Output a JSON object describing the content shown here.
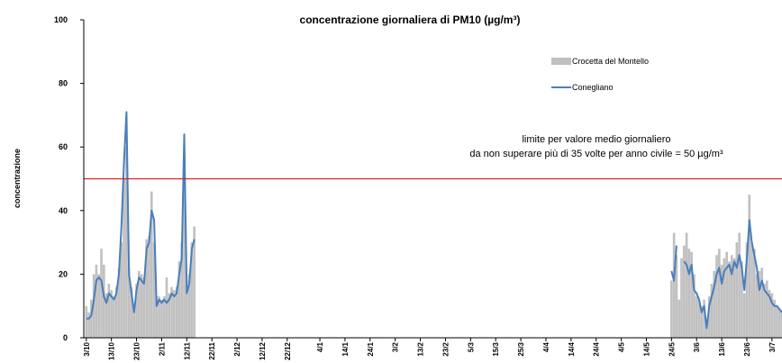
{
  "chart_data": {
    "type": "bar_line",
    "title": "concentrazione giornaliera di PM10 (µg/m³)",
    "y_label": "concentrazione",
    "ylim": [
      0,
      100
    ],
    "yticks": [
      0,
      20,
      40,
      60,
      80,
      100
    ],
    "xlim": [
      -1,
      277
    ],
    "xticks": [
      {
        "value": 0,
        "label": "3/10"
      },
      {
        "value": 10,
        "label": "13/10"
      },
      {
        "value": 20,
        "label": "23/10"
      },
      {
        "value": 30,
        "label": "2/11"
      },
      {
        "value": 40,
        "label": "12/11"
      },
      {
        "value": 50,
        "label": "22/11"
      },
      {
        "value": 60,
        "label": "2/12"
      },
      {
        "value": 70,
        "label": "12/12"
      },
      {
        "value": 80,
        "label": "22/12"
      },
      {
        "value": 93,
        "label": "4/1"
      },
      {
        "value": 103,
        "label": "14/1"
      },
      {
        "value": 113,
        "label": "24/1"
      },
      {
        "value": 123,
        "label": "3/2"
      },
      {
        "value": 133,
        "label": "13/2"
      },
      {
        "value": 143,
        "label": "23/2"
      },
      {
        "value": 153,
        "label": "5/3"
      },
      {
        "value": 163,
        "label": "15/3"
      },
      {
        "value": 173,
        "label": "25/3"
      },
      {
        "value": 183,
        "label": "4/4"
      },
      {
        "value": 193,
        "label": "14/4"
      },
      {
        "value": 203,
        "label": "24/4"
      },
      {
        "value": 213,
        "label": "4/5"
      },
      {
        "value": 223,
        "label": "14/5"
      },
      {
        "value": 233,
        "label": "24/5"
      },
      {
        "value": 243,
        "label": "3/6"
      },
      {
        "value": 253,
        "label": "13/6"
      },
      {
        "value": 263,
        "label": "23/6"
      },
      {
        "value": 273,
        "label": "3/7"
      }
    ],
    "x": [
      0,
      1,
      2,
      3,
      4,
      5,
      6,
      7,
      8,
      9,
      10,
      11,
      12,
      13,
      14,
      15,
      16,
      17,
      18,
      19,
      20,
      21,
      22,
      23,
      24,
      25,
      26,
      27,
      28,
      29,
      30,
      31,
      32,
      33,
      34,
      35,
      36,
      37,
      38,
      39,
      40,
      41,
      42,
      43,
      233,
      234,
      235,
      236,
      237,
      238,
      239,
      240,
      241,
      242,
      243,
      244,
      245,
      246,
      247,
      248,
      249,
      250,
      251,
      252,
      253,
      254,
      255,
      256,
      257,
      258,
      259,
      260,
      261,
      262,
      263,
      264,
      265,
      266,
      267,
      268,
      269,
      270,
      271,
      272,
      273,
      274,
      275,
      276,
      277
    ],
    "series": [
      {
        "name": "Crocetta del Montello",
        "kind": "bar",
        "color": "#c0c0c0",
        "values": [
          10,
          8,
          12,
          20,
          23,
          20,
          28,
          23,
          14,
          17,
          15,
          13,
          16,
          22,
          30,
          50,
          60,
          22,
          16,
          10,
          17,
          21,
          20,
          19,
          31,
          32,
          46,
          30,
          13,
          13,
          12,
          13,
          19,
          14,
          16,
          15,
          16,
          24,
          30,
          55,
          18,
          20,
          30,
          35,
          18,
          33,
          26,
          12,
          25,
          29,
          33,
          28,
          27,
          20,
          13,
          12,
          10,
          12,
          5,
          13,
          17,
          21,
          26,
          28,
          23,
          25,
          27,
          24,
          26,
          25,
          30,
          33,
          24,
          14,
          30,
          45,
          30,
          28,
          20,
          21,
          22,
          17,
          18,
          15,
          14,
          12,
          10,
          9,
          8
        ]
      },
      {
        "name": "Conegliano",
        "kind": "line",
        "color": "#4a7ebb",
        "values": [
          6,
          6,
          7,
          12,
          18,
          19,
          18,
          13,
          11,
          14,
          13,
          12,
          14,
          20,
          35,
          55,
          71,
          20,
          14,
          8,
          15,
          19,
          18,
          17,
          28,
          30,
          40,
          37,
          10,
          12,
          11,
          12,
          11,
          12,
          14,
          13,
          14,
          20,
          25,
          64,
          14,
          17,
          28,
          31,
          21,
          18,
          29,
          null,
          null,
          24,
          23,
          20,
          23,
          15,
          14,
          12,
          8,
          10,
          3,
          10,
          13,
          16,
          20,
          22,
          17,
          21,
          22,
          23,
          20,
          24,
          22,
          26,
          22,
          15,
          25,
          37,
          30,
          26,
          22,
          15,
          18,
          15,
          14,
          13,
          11,
          10,
          10,
          9,
          8
        ]
      }
    ],
    "reference_line": {
      "value": 50,
      "color": "#e02020"
    },
    "annotation": [
      "limite per valore medio giornaliero",
      "da non superare più di 35 volte per anno civile = 50 µg/m³"
    ]
  }
}
